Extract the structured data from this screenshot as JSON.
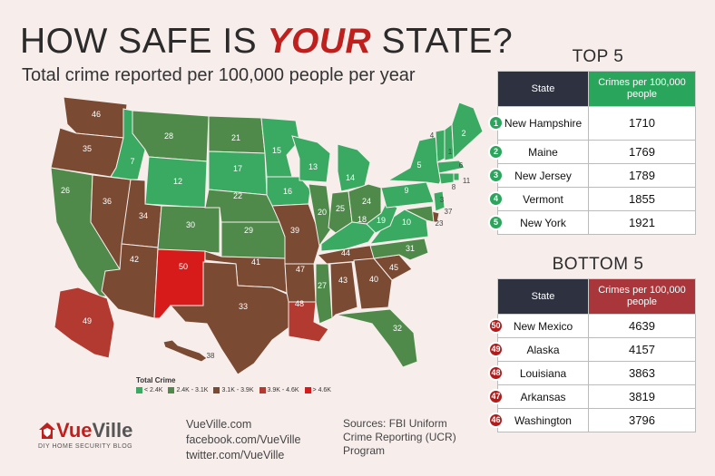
{
  "header": {
    "title_pre": "HOW SAFE IS ",
    "title_em": "YOUR",
    "title_post": " STATE?",
    "subtitle": "Total crime reported per 100,000 people per year"
  },
  "colors": {
    "c1": "#3aaa63",
    "c2": "#4f8a4b",
    "c3": "#7a4a33",
    "c4": "#b23a30",
    "c5": "#d71a1a"
  },
  "chart_data": [
    {
      "type": "table",
      "title": "TOP 5",
      "columns": [
        "State",
        "Crimes per 100,000 people"
      ],
      "rows": [
        {
          "rank": "1",
          "state": "New Hampshire",
          "value": "1710"
        },
        {
          "rank": "2",
          "state": "Maine",
          "value": "1769"
        },
        {
          "rank": "3",
          "state": "New Jersey",
          "value": "1789"
        },
        {
          "rank": "4",
          "state": "Vermont",
          "value": "1855"
        },
        {
          "rank": "5",
          "state": "New York",
          "value": "1921"
        }
      ]
    },
    {
      "type": "table",
      "title": "BOTTOM 5",
      "columns": [
        "State",
        "Crimes per 100,000 people"
      ],
      "rows": [
        {
          "rank": "50",
          "state": "New Mexico",
          "value": "4639"
        },
        {
          "rank": "49",
          "state": "Alaska",
          "value": "4157"
        },
        {
          "rank": "48",
          "state": "Louisiana",
          "value": "3863"
        },
        {
          "rank": "47",
          "state": "Arkansas",
          "value": "3819"
        },
        {
          "rank": "46",
          "state": "Washington",
          "value": "3796"
        }
      ]
    },
    {
      "type": "heatmap",
      "legend_title": "Total Crime",
      "legend": [
        {
          "label": "< 2.4K",
          "color": "#3aaa63"
        },
        {
          "label": "2.4K - 3.1K",
          "color": "#4f8a4b"
        },
        {
          "label": "3.1K - 3.9K",
          "color": "#7a4a33"
        },
        {
          "label": "3.9K - 4.6K",
          "color": "#b23a30"
        },
        {
          "label": "> 4.6K",
          "color": "#d71a1a"
        }
      ],
      "states": [
        {
          "code": "WA",
          "rank": "46",
          "cls": 3
        },
        {
          "code": "OR",
          "rank": "35",
          "cls": 3
        },
        {
          "code": "CA",
          "rank": "26",
          "cls": 2
        },
        {
          "code": "NV",
          "rank": "36",
          "cls": 3
        },
        {
          "code": "ID",
          "rank": "7",
          "cls": 1
        },
        {
          "code": "MT",
          "rank": "28",
          "cls": 2
        },
        {
          "code": "WY",
          "rank": "12",
          "cls": 1
        },
        {
          "code": "UT",
          "rank": "34",
          "cls": 3
        },
        {
          "code": "AZ",
          "rank": "42",
          "cls": 3
        },
        {
          "code": "CO",
          "rank": "30",
          "cls": 2
        },
        {
          "code": "NM",
          "rank": "50",
          "cls": 5
        },
        {
          "code": "ND",
          "rank": "21",
          "cls": 2
        },
        {
          "code": "SD",
          "rank": "17",
          "cls": 1
        },
        {
          "code": "NE",
          "rank": "22",
          "cls": 2
        },
        {
          "code": "KS",
          "rank": "29",
          "cls": 2
        },
        {
          "code": "OK",
          "rank": "41",
          "cls": 3
        },
        {
          "code": "TX",
          "rank": "33",
          "cls": 3
        },
        {
          "code": "MN",
          "rank": "15",
          "cls": 1
        },
        {
          "code": "IA",
          "rank": "16",
          "cls": 1
        },
        {
          "code": "MO",
          "rank": "39",
          "cls": 3
        },
        {
          "code": "AR",
          "rank": "47",
          "cls": 3
        },
        {
          "code": "LA",
          "rank": "48",
          "cls": 4
        },
        {
          "code": "WI",
          "rank": "13",
          "cls": 1
        },
        {
          "code": "IL",
          "rank": "20",
          "cls": 2
        },
        {
          "code": "MI",
          "rank": "14",
          "cls": 1
        },
        {
          "code": "IN",
          "rank": "25",
          "cls": 2
        },
        {
          "code": "OH",
          "rank": "24",
          "cls": 2
        },
        {
          "code": "KY",
          "rank": "18",
          "cls": 1
        },
        {
          "code": "TN",
          "rank": "44",
          "cls": 3
        },
        {
          "code": "MS",
          "rank": "27",
          "cls": 2
        },
        {
          "code": "AL",
          "rank": "43",
          "cls": 3
        },
        {
          "code": "GA",
          "rank": "40",
          "cls": 3
        },
        {
          "code": "FL",
          "rank": "32",
          "cls": 2
        },
        {
          "code": "SC",
          "rank": "45",
          "cls": 3
        },
        {
          "code": "NC",
          "rank": "31",
          "cls": 2
        },
        {
          "code": "VA",
          "rank": "10",
          "cls": 1
        },
        {
          "code": "WV",
          "rank": "19",
          "cls": 1
        },
        {
          "code": "PA",
          "rank": "9",
          "cls": 1
        },
        {
          "code": "NY",
          "rank": "5",
          "cls": 1
        },
        {
          "code": "VT",
          "rank": "4",
          "cls": 1
        },
        {
          "code": "NH",
          "rank": "1",
          "cls": 1
        },
        {
          "code": "ME",
          "rank": "2",
          "cls": 1
        },
        {
          "code": "MA",
          "rank": "6",
          "cls": 1
        },
        {
          "code": "RI",
          "rank": "11",
          "cls": 1
        },
        {
          "code": "CT",
          "rank": "8",
          "cls": 1
        },
        {
          "code": "NJ",
          "rank": "3",
          "cls": 1
        },
        {
          "code": "DE",
          "rank": "37",
          "cls": 3
        },
        {
          "code": "MD",
          "rank": "23",
          "cls": 2
        },
        {
          "code": "AK",
          "rank": "49",
          "cls": 4
        },
        {
          "code": "HI",
          "rank": "38",
          "cls": 3
        }
      ]
    }
  ],
  "footer": {
    "logo_vue": "Vue",
    "logo_ville": "Ville",
    "tagline": "DIY HOME SECURITY BLOG",
    "links": [
      "VueVille.com",
      "facebook.com/VueVille",
      "twitter.com/VueVille"
    ],
    "sources": "Sources: FBI Uniform Crime Reporting (UCR) Program"
  }
}
